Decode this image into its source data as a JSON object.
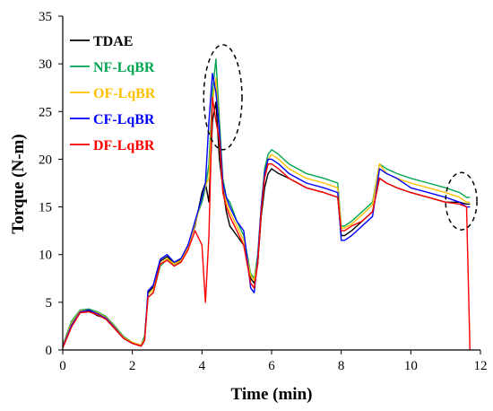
{
  "chart_data": {
    "type": "line",
    "title": "",
    "xlabel": "Time (min)",
    "ylabel": "Torque (N-m)",
    "xlim": [
      0,
      12
    ],
    "ylim": [
      0,
      35
    ],
    "xticks": [
      "0",
      "2",
      "4",
      "6",
      "8",
      "10",
      "12"
    ],
    "yticks": [
      "0",
      "5",
      "10",
      "15",
      "20",
      "25",
      "30",
      "35"
    ],
    "grid": false,
    "legend_position": "top-left",
    "x": [
      0.0,
      0.25,
      0.5,
      0.75,
      1.0,
      1.25,
      1.5,
      1.75,
      2.0,
      2.25,
      2.35,
      2.45,
      2.6,
      2.8,
      3.0,
      3.2,
      3.4,
      3.6,
      3.8,
      4.0,
      4.1,
      4.2,
      4.3,
      4.4,
      4.5,
      4.6,
      4.7,
      4.8,
      5.0,
      5.2,
      5.4,
      5.5,
      5.6,
      5.7,
      5.8,
      5.9,
      6.0,
      6.2,
      6.5,
      7.0,
      7.5,
      7.9,
      8.0,
      8.1,
      8.3,
      8.6,
      8.9,
      9.1,
      9.3,
      9.6,
      10.0,
      10.5,
      11.0,
      11.4,
      11.6,
      11.7
    ],
    "series": [
      {
        "name": "TDAE",
        "color": "#000000",
        "values": [
          0.3,
          2.5,
          4.0,
          4.1,
          3.6,
          3.3,
          2.2,
          1.2,
          0.7,
          0.4,
          1.0,
          6.0,
          6.6,
          9.3,
          9.8,
          9.0,
          9.5,
          11.0,
          13.0,
          16.5,
          17.5,
          15.5,
          24.0,
          26.0,
          20.0,
          17.0,
          14.5,
          13.0,
          12.0,
          11.0,
          7.5,
          7.0,
          9.0,
          14.0,
          17.0,
          18.5,
          19.0,
          18.5,
          18.0,
          17.0,
          16.5,
          16.0,
          12.0,
          12.0,
          12.5,
          13.5,
          14.5,
          18.0,
          17.5,
          17.0,
          16.5,
          16.0,
          15.5,
          15.5,
          15.3,
          15.3
        ]
      },
      {
        "name": "NF-LqBR",
        "color": "#00a651",
        "values": [
          0.5,
          3.0,
          4.2,
          4.3,
          4.0,
          3.5,
          2.5,
          1.4,
          0.8,
          0.5,
          1.5,
          5.5,
          6.0,
          8.8,
          9.5,
          8.8,
          9.3,
          10.5,
          13.5,
          15.5,
          17.0,
          19.5,
          27.0,
          30.5,
          24.0,
          18.0,
          16.0,
          15.5,
          13.5,
          12.0,
          8.0,
          7.5,
          10.0,
          15.0,
          19.0,
          20.5,
          21.0,
          20.5,
          19.5,
          18.5,
          18.0,
          17.5,
          13.0,
          13.0,
          13.5,
          14.5,
          15.5,
          19.5,
          19.0,
          18.5,
          18.0,
          17.5,
          17.0,
          16.5,
          16.0,
          16.0
        ]
      },
      {
        "name": "OF-LqBR",
        "color": "#ffc000",
        "values": [
          0.4,
          2.8,
          4.1,
          4.2,
          3.9,
          3.4,
          2.4,
          1.3,
          0.8,
          0.5,
          1.2,
          5.8,
          6.3,
          9.0,
          9.6,
          9.0,
          9.4,
          10.8,
          13.2,
          16.0,
          17.2,
          18.0,
          26.0,
          28.5,
          22.5,
          17.5,
          15.5,
          14.5,
          13.0,
          11.5,
          7.8,
          7.3,
          9.5,
          14.5,
          18.5,
          20.0,
          20.5,
          20.0,
          19.0,
          18.0,
          17.5,
          17.0,
          12.8,
          12.8,
          13.2,
          14.2,
          15.2,
          19.5,
          18.5,
          18.0,
          17.5,
          17.0,
          16.5,
          16.0,
          15.5,
          15.5
        ]
      },
      {
        "name": "CF-LqBR",
        "color": "#0000ff",
        "values": [
          0.3,
          2.6,
          4.0,
          4.2,
          3.8,
          3.3,
          2.3,
          1.2,
          0.7,
          0.4,
          1.0,
          6.2,
          6.8,
          9.5,
          10.0,
          9.2,
          9.6,
          11.0,
          13.5,
          16.0,
          17.5,
          24.0,
          29.0,
          27.0,
          23.0,
          17.5,
          16.0,
          15.0,
          13.5,
          12.5,
          6.5,
          6.0,
          9.5,
          15.0,
          18.5,
          20.0,
          20.0,
          19.5,
          18.5,
          17.5,
          17.0,
          16.5,
          11.5,
          11.5,
          12.0,
          13.0,
          14.0,
          19.0,
          18.5,
          18.0,
          17.0,
          16.5,
          16.0,
          15.5,
          15.0,
          15.0
        ]
      },
      {
        "name": "DF-LqBR",
        "color": "#ff0000",
        "values": [
          0.2,
          2.4,
          3.9,
          4.0,
          3.7,
          3.2,
          2.2,
          1.2,
          0.7,
          0.4,
          1.0,
          5.5,
          6.0,
          9.0,
          9.4,
          8.8,
          9.2,
          10.5,
          12.5,
          11.0,
          5.0,
          12.0,
          26.5,
          24.0,
          22.0,
          16.5,
          15.0,
          14.0,
          12.5,
          11.0,
          7.0,
          6.5,
          9.0,
          14.5,
          18.0,
          19.5,
          19.5,
          19.0,
          18.0,
          17.0,
          16.5,
          16.0,
          12.5,
          12.5,
          13.0,
          13.5,
          14.5,
          18.0,
          17.5,
          17.0,
          16.5,
          16.0,
          15.5,
          15.3,
          15.0,
          0.0
        ]
      }
    ],
    "annotations": [
      {
        "shape": "dashed-circle",
        "center": [
          4.6,
          26.5
        ],
        "radius_x": 0.55,
        "radius_y": 5.5
      },
      {
        "shape": "dashed-circle",
        "center": [
          11.45,
          15.6
        ],
        "radius_x": 0.45,
        "radius_y": 3.0
      }
    ]
  }
}
